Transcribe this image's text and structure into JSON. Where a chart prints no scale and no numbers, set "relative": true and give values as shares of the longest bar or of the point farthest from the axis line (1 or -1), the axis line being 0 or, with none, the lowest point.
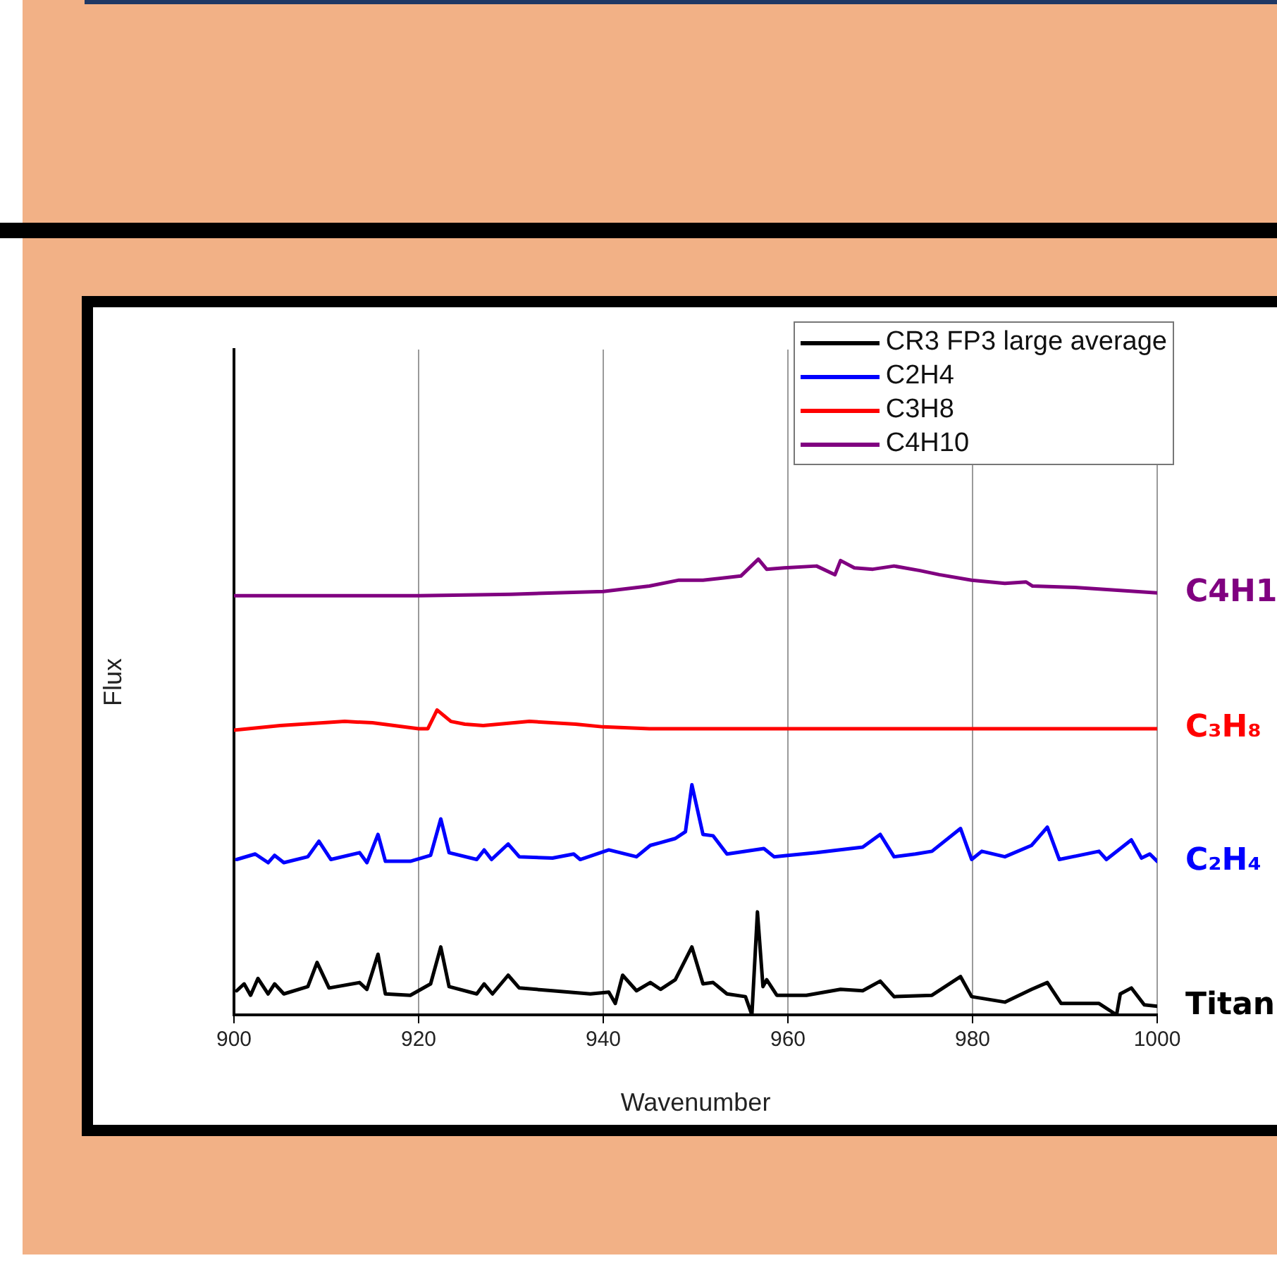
{
  "chart_data": {
    "type": "line",
    "relative": true,
    "xlabel": "Wavenumber",
    "ylabel": "Flux",
    "xlim": [
      900,
      1000
    ],
    "xticks": [
      900,
      920,
      940,
      960,
      980,
      1000
    ],
    "grid": "x",
    "legend": "top right",
    "tick_labels": "x",
    "line_style": "solid",
    "marker": "none",
    "series": [
      {
        "name": "CR3 FP3 large average",
        "color": "#000000",
        "x": [
          900.3,
          901.1,
          901.8,
          902.6,
          903.7,
          904.4,
          905.4,
          908,
          909,
          910.3,
          913.6,
          914.4,
          915.6,
          916.4,
          919.1,
          921.3,
          922.4,
          923.3,
          926.3,
          927.1,
          928,
          929.7,
          930.9,
          934.5,
          938.6,
          940.6,
          941.3,
          942.1,
          943.6,
          945.1,
          946.2,
          947.8,
          949.6,
          950.8,
          951.9,
          953.4,
          955.4,
          956.1,
          956.7,
          957.3,
          957.7,
          958.8,
          962,
          965.7,
          968.1,
          970,
          971.5,
          975.6,
          978.7,
          979.9,
          983.5,
          986.4,
          988.1,
          989.6,
          993.7,
          995.6,
          996,
          997.2,
          998.6,
          1000
        ],
        "values": [
          0.053,
          0.068,
          0.043,
          0.08,
          0.046,
          0.068,
          0.046,
          0.062,
          0.115,
          0.059,
          0.071,
          0.056,
          0.133,
          0.046,
          0.043,
          0.068,
          0.149,
          0.062,
          0.046,
          0.068,
          0.046,
          0.087,
          0.059,
          0.053,
          0.046,
          0.05,
          0.025,
          0.087,
          0.053,
          0.071,
          0.056,
          0.077,
          0.149,
          0.068,
          0.071,
          0.046,
          0.04,
          0,
          0.226,
          0.062,
          0.077,
          0.043,
          0.043,
          0.056,
          0.053,
          0.074,
          0.04,
          0.043,
          0.084,
          0.04,
          0.028,
          0.056,
          0.071,
          0.025,
          0.025,
          0,
          0.046,
          0.059,
          0.022,
          0.019
        ]
      },
      {
        "name": "C2H4",
        "color": "#0000ff",
        "x": [
          900.3,
          902.3,
          903.7,
          904.4,
          905.4,
          908,
          909.2,
          910.5,
          913.6,
          914.4,
          915.6,
          916.4,
          919.1,
          921.3,
          922.4,
          923.3,
          926.3,
          927.1,
          927.9,
          929.7,
          930.9,
          934.5,
          936.8,
          937.5,
          940.6,
          943.6,
          945.1,
          946.2,
          947.8,
          948.9,
          949.6,
          950.8,
          951.9,
          953.4,
          957.4,
          958.5,
          960,
          963.1,
          968.1,
          970,
          971.5,
          973.8,
          975.6,
          978.7,
          979.9,
          981,
          983.5,
          986.4,
          988.1,
          989.4,
          993.7,
          994.5,
          997.2,
          998.3,
          999.2,
          1000
        ],
        "values": [
          0.341,
          0.353,
          0.334,
          0.35,
          0.334,
          0.347,
          0.381,
          0.341,
          0.356,
          0.334,
          0.396,
          0.337,
          0.337,
          0.35,
          0.43,
          0.356,
          0.341,
          0.362,
          0.341,
          0.375,
          0.347,
          0.344,
          0.353,
          0.341,
          0.362,
          0.347,
          0.372,
          0.378,
          0.387,
          0.402,
          0.505,
          0.396,
          0.393,
          0.353,
          0.365,
          0.347,
          0.35,
          0.356,
          0.368,
          0.396,
          0.347,
          0.353,
          0.359,
          0.409,
          0.341,
          0.359,
          0.347,
          0.372,
          0.412,
          0.341,
          0.359,
          0.341,
          0.384,
          0.344,
          0.353,
          0.337
        ]
      },
      {
        "name": "C3H8",
        "color": "#ff0000",
        "x": [
          900,
          905,
          912,
          915,
          920,
          921,
          922,
          923.5,
          925,
          927,
          932,
          937,
          940,
          945,
          950,
          1000
        ],
        "values": [
          0.625,
          0.635,
          0.644,
          0.641,
          0.628,
          0.628,
          0.669,
          0.644,
          0.638,
          0.635,
          0.644,
          0.638,
          0.632,
          0.628,
          0.628,
          0.628
        ]
      },
      {
        "name": "C4H10",
        "color": "#800080",
        "x": [
          900,
          920,
          930,
          940,
          945,
          948.2,
          950.8,
          954.9,
          956.8,
          957.7,
          959.6,
          963.1,
          965.1,
          965.7,
          967.2,
          969.2,
          971.5,
          974.3,
          976.4,
          979.9,
          983.5,
          985.8,
          986.5,
          991.1,
          1000
        ],
        "values": [
          0.92,
          0.92,
          0.923,
          0.929,
          0.941,
          0.954,
          0.954,
          0.963,
          1.0,
          0.978,
          0.981,
          0.985,
          0.966,
          0.997,
          0.981,
          0.978,
          0.985,
          0.975,
          0.966,
          0.954,
          0.947,
          0.95,
          0.941,
          0.938,
          0.926
        ]
      }
    ],
    "annotations": [
      "C4H1",
      "C₃H₈",
      "C₂H₄",
      "Titan"
    ]
  }
}
